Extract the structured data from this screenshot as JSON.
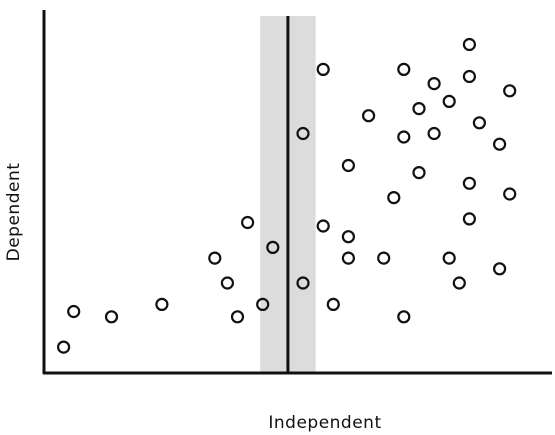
{
  "chart_data": {
    "type": "scatter",
    "title": "",
    "xlabel": "Independent",
    "ylabel": "Dependent",
    "xlim": [
      0,
      100
    ],
    "ylim": [
      0,
      100
    ],
    "grid": false,
    "ticks": false,
    "vertical_marker": {
      "x": 48,
      "band": [
        42.5,
        53.5
      ],
      "band_color": "#dcdcdc",
      "line_color": "#111111"
    },
    "marker": "open-circle",
    "points": [
      {
        "x": 3.5,
        "y": 7
      },
      {
        "x": 5.5,
        "y": 17
      },
      {
        "x": 13,
        "y": 15.5
      },
      {
        "x": 23,
        "y": 19
      },
      {
        "x": 33.5,
        "y": 32
      },
      {
        "x": 36,
        "y": 25
      },
      {
        "x": 38,
        "y": 15.5
      },
      {
        "x": 40,
        "y": 42
      },
      {
        "x": 43,
        "y": 19
      },
      {
        "x": 45,
        "y": 35
      },
      {
        "x": 51,
        "y": 25
      },
      {
        "x": 51,
        "y": 67
      },
      {
        "x": 55,
        "y": 41
      },
      {
        "x": 55,
        "y": 85
      },
      {
        "x": 57,
        "y": 19
      },
      {
        "x": 60,
        "y": 32
      },
      {
        "x": 60,
        "y": 38
      },
      {
        "x": 60,
        "y": 58
      },
      {
        "x": 64,
        "y": 72
      },
      {
        "x": 67,
        "y": 32
      },
      {
        "x": 69,
        "y": 49
      },
      {
        "x": 71,
        "y": 15.5
      },
      {
        "x": 71,
        "y": 66
      },
      {
        "x": 71,
        "y": 85
      },
      {
        "x": 74,
        "y": 56
      },
      {
        "x": 74,
        "y": 74
      },
      {
        "x": 77,
        "y": 67
      },
      {
        "x": 77,
        "y": 81
      },
      {
        "x": 80,
        "y": 76
      },
      {
        "x": 80,
        "y": 32
      },
      {
        "x": 82,
        "y": 25
      },
      {
        "x": 84,
        "y": 43
      },
      {
        "x": 84,
        "y": 53
      },
      {
        "x": 84,
        "y": 83
      },
      {
        "x": 84,
        "y": 92
      },
      {
        "x": 86,
        "y": 70
      },
      {
        "x": 90,
        "y": 29
      },
      {
        "x": 90,
        "y": 64
      },
      {
        "x": 92,
        "y": 50
      },
      {
        "x": 92,
        "y": 79
      }
    ]
  }
}
